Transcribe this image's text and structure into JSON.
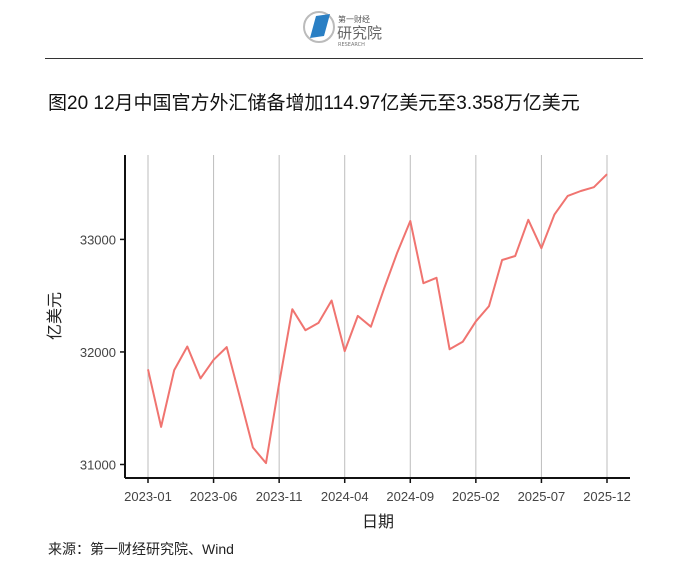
{
  "logo": {
    "text_top": "第一财经",
    "text_main": "研究院",
    "text_sub": "RESEARCH",
    "color": "#2a7fc4"
  },
  "title": "图20 12月中国官方外汇储备增加114.97亿美元至3.358万亿美元",
  "source": "来源：第一财经研究院、Wind",
  "chart_data": {
    "type": "line",
    "title": "图20 12月中国官方外汇储备增加114.97亿美元至3.358万亿美元",
    "xlabel": "日期",
    "ylabel": "亿美元",
    "x": [
      "2023-01",
      "2023-02",
      "2023-03",
      "2023-04",
      "2023-05",
      "2023-06",
      "2023-07",
      "2023-08",
      "2023-09",
      "2023-10",
      "2023-11",
      "2023-12",
      "2024-01",
      "2024-02",
      "2024-03",
      "2024-04",
      "2024-05",
      "2024-06",
      "2024-07",
      "2024-08",
      "2024-09",
      "2024-10",
      "2024-11",
      "2024-12",
      "2025-01",
      "2025-02",
      "2025-03",
      "2025-04",
      "2025-05",
      "2025-06",
      "2025-07",
      "2025-08",
      "2025-09",
      "2025-10",
      "2025-11",
      "2025-12"
    ],
    "values": [
      31845,
      31334,
      31839,
      32048,
      31765,
      31930,
      32043,
      31601,
      31151,
      31012,
      31718,
      32380,
      32193,
      32258,
      32457,
      32008,
      32320,
      32224,
      32564,
      32882,
      33164,
      32611,
      32659,
      32024,
      32090,
      32272,
      32407,
      32817,
      32853,
      33174,
      32922,
      33222,
      33387,
      33430,
      33464,
      33579
    ],
    "xticks": [
      "2023-01",
      "2023-06",
      "2023-11",
      "2024-04",
      "2024-09",
      "2025-02",
      "2025-07",
      "2025-12"
    ],
    "yticks": [
      31000,
      32000,
      33000
    ],
    "ylim": [
      30880,
      33750
    ],
    "grid": "vertical lines at x ticks",
    "line_color": "#f07470",
    "grid_color": "#bdbdbd"
  }
}
